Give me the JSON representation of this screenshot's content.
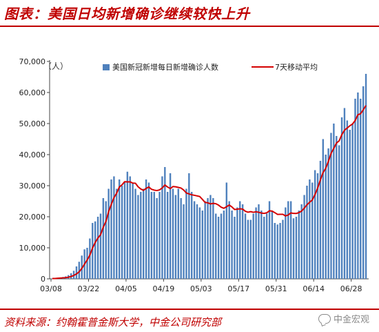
{
  "header": {
    "title": "图表：美国日均新增确诊继续较快上升"
  },
  "footer": {
    "source": "资料来源：约翰霍普金斯大学，中金公司研究部",
    "watermark_text": "中金宏观",
    "watermark_icon": "wechat-icon"
  },
  "colors": {
    "title": "#c00000",
    "bar": "#4f81bd",
    "line": "#d40000"
  },
  "chart_data": {
    "type": "bar",
    "unit_label": "（人）",
    "ylim": [
      0,
      70000
    ],
    "yticks": [
      0,
      10000,
      20000,
      30000,
      40000,
      50000,
      60000,
      70000
    ],
    "ytick_labels": [
      "0",
      "10,000",
      "20,000",
      "30,000",
      "40,000",
      "50,000",
      "60,000",
      "70,000"
    ],
    "x_start": "2020-03-08",
    "xticks": [
      "03/08",
      "03/22",
      "04/05",
      "04/19",
      "05/03",
      "05/17",
      "05/31",
      "06/14",
      "06/28"
    ],
    "xtick_dates": [
      "2020-03-08",
      "2020-03-22",
      "2020-04-05",
      "2020-04-19",
      "2020-05-03",
      "2020-05-17",
      "2020-05-31",
      "2020-06-14",
      "2020-06-28"
    ],
    "series": [
      {
        "name": "美国新冠新增每日新增确诊人数",
        "type": "bar",
        "values": [
          100,
          150,
          300,
          450,
          600,
          800,
          1200,
          1800,
          2600,
          4000,
          5500,
          7500,
          9500,
          10000,
          13000,
          18000,
          18500,
          20000,
          21000,
          26000,
          25000,
          29000,
          32000,
          33000,
          29000,
          32000,
          30000,
          31000,
          34500,
          33000,
          31000,
          29000,
          27000,
          28000,
          29000,
          32000,
          31000,
          28000,
          28000,
          26000,
          28000,
          33000,
          36000,
          28000,
          34000,
          29000,
          27000,
          29000,
          26000,
          24000,
          29000,
          34000,
          28000,
          25000,
          24000,
          23000,
          22000,
          25000,
          26000,
          27000,
          26000,
          21000,
          20000,
          21000,
          22000,
          31000,
          25000,
          22000,
          20000,
          23000,
          25000,
          24000,
          21000,
          19000,
          19000,
          21000,
          23000,
          24000,
          22000,
          20000,
          21000,
          25000,
          22000,
          18000,
          17500,
          18000,
          19000,
          23000,
          25000,
          25000,
          19500,
          20000,
          22000,
          24000,
          27000,
          30000,
          32000,
          31000,
          35000,
          34000,
          38000,
          45000,
          40000,
          42000,
          47000,
          50000,
          46000,
          43000,
          52000,
          55000,
          51000,
          48000,
          50000,
          58000,
          60000,
          58000,
          62000,
          66000
        ]
      },
      {
        "name": "7天移动平均",
        "type": "line",
        "values": [
          100,
          125,
          183,
          250,
          320,
          400,
          514,
          757,
          1107,
          1571,
          2257,
          3357,
          4729,
          6079,
          7643,
          9929,
          11714,
          13143,
          14214,
          16643,
          18500,
          21643,
          24000,
          26143,
          27571,
          29571,
          30286,
          31286,
          31214,
          31229,
          30829,
          30786,
          29643,
          28929,
          28500,
          29129,
          29571,
          28843,
          28569,
          28429,
          28643,
          29271,
          30200,
          29571,
          29071,
          29714,
          29640,
          29440,
          29240,
          28600,
          27643,
          27357,
          27071,
          26900,
          26714,
          26500,
          25571,
          24600,
          24486,
          24129,
          24300,
          24200,
          23743,
          23057,
          22714,
          23229,
          23771,
          23143,
          22343,
          22429,
          22557,
          22457,
          21771,
          21457,
          21643,
          21429,
          21600,
          21429,
          21200,
          21071,
          21271,
          21914,
          21814,
          21314,
          20757,
          20786,
          20786,
          20257,
          20571,
          21229,
          21071,
          21057,
          21329,
          21829,
          22786,
          23857,
          24671,
          25400,
          27143,
          29257,
          31857,
          34243,
          35600,
          37857,
          40429,
          42000,
          43714,
          44429,
          46429,
          47857,
          48571,
          49286,
          49857,
          51000,
          52857,
          53143,
          54429,
          55800
        ]
      }
    ],
    "legend": [
      "美国新冠新增每日新增确诊人数",
      "7天移动平均"
    ],
    "legend_position": "top",
    "grid": false
  }
}
